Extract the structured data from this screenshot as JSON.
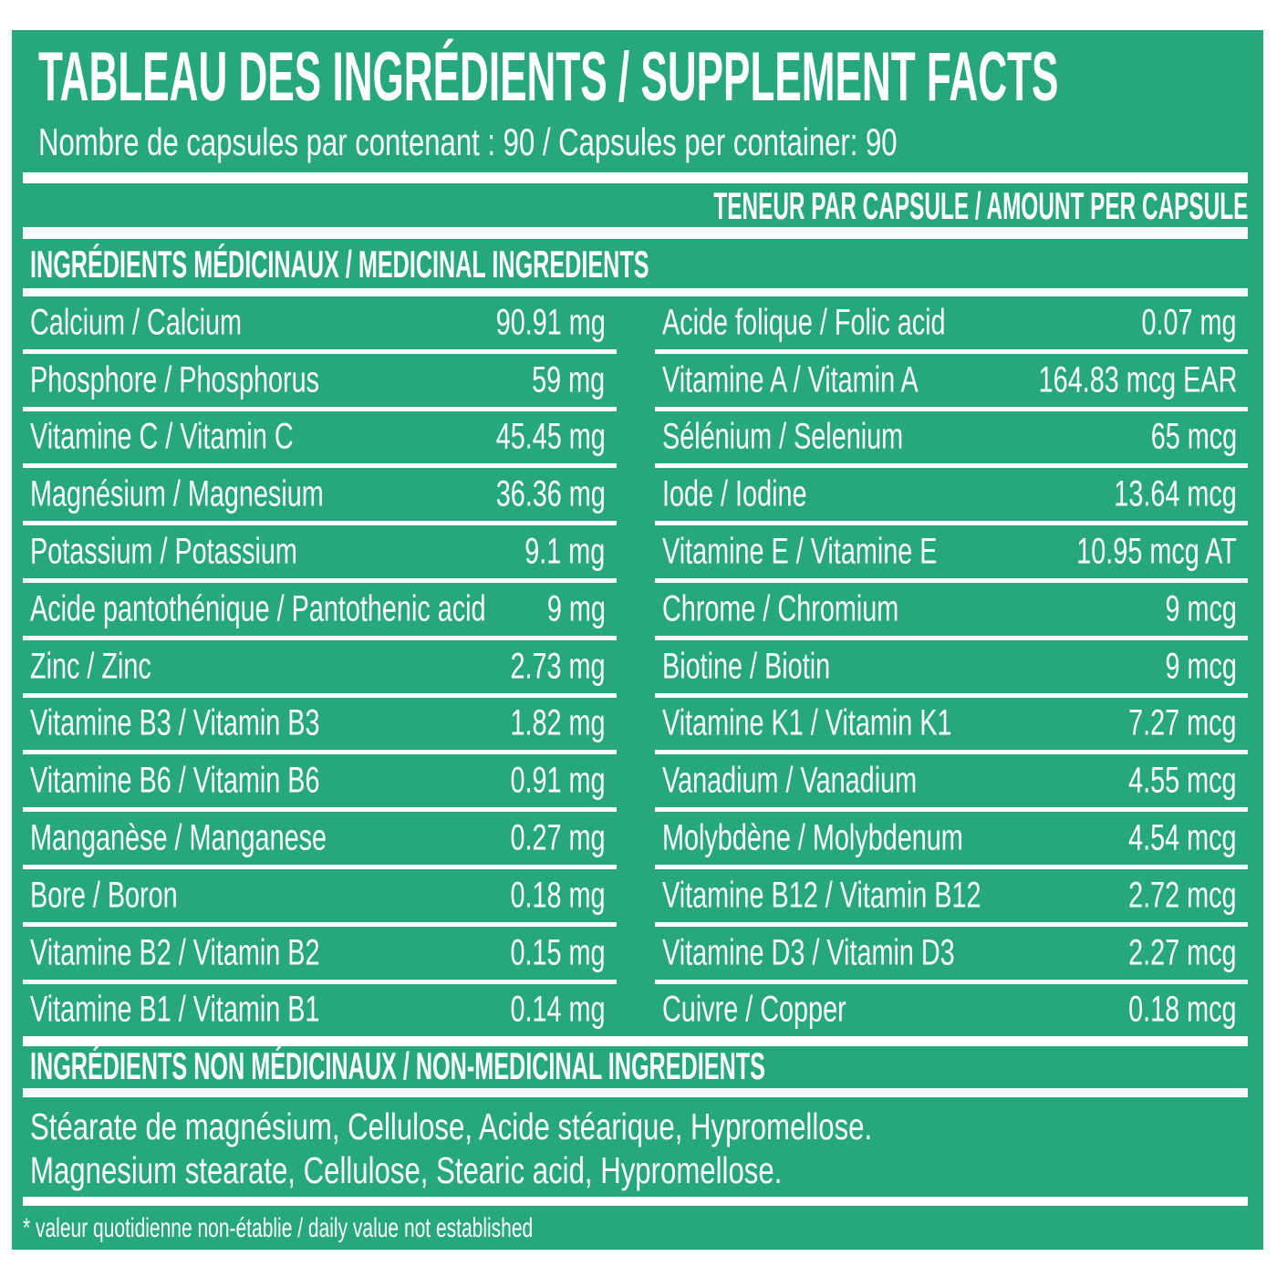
{
  "colors": {
    "panel_green": "#27A87C",
    "text_white": "#FFFFFF"
  },
  "header": {
    "title": "TABLEAU DES INGRÉDIENTS / SUPPLEMENT FACTS",
    "capsules_line": "Nombre de capsules par contenant : 90 / Capsules per container: 90",
    "amount_per_capsule": "TENEUR PAR CAPSULE / AMOUNT PER CAPSULE"
  },
  "medicinal": {
    "heading": "INGRÉDIENTS MÉDICINAUX / MEDICINAL INGREDIENTS",
    "left_column": [
      {
        "name": "Calcium / Calcium",
        "amount": "90.91 mg"
      },
      {
        "name": "Phosphore / Phosphorus",
        "amount": "59 mg"
      },
      {
        "name": "Vitamine C / Vitamin C",
        "amount": "45.45 mg"
      },
      {
        "name": "Magnésium / Magnesium",
        "amount": "36.36 mg"
      },
      {
        "name": "Potassium  /  Potassium",
        "amount": "9.1 mg"
      },
      {
        "name": "Acide pantothénique  / Pantothenic acid",
        "amount": "9 mg"
      },
      {
        "name": "Zinc / Zinc",
        "amount": "2.73 mg"
      },
      {
        "name": "Vitamine B3 / Vitamin B3",
        "amount": "1.82 mg"
      },
      {
        "name": "Vitamine B6 / Vitamin B6",
        "amount": "0.91 mg"
      },
      {
        "name": "Manganèse / Manganese",
        "amount": "0.27 mg"
      },
      {
        "name": "Bore  /  Boron",
        "amount": "0.18 mg"
      },
      {
        "name": "Vitamine B2 /  Vitamin B2",
        "amount": "0.15 mg"
      },
      {
        "name": "Vitamine B1 /  Vitamin B1",
        "amount": "0.14 mg"
      }
    ],
    "right_column": [
      {
        "name": "Acide folique / Folic acid",
        "amount": "0.07 mg"
      },
      {
        "name": "Vitamine A / Vitamin A",
        "amount": "164.83 mcg EAR"
      },
      {
        "name": "Sélénium / Selenium",
        "amount": "65 mcg"
      },
      {
        "name": "Iode / Iodine",
        "amount": "13.64 mcg"
      },
      {
        "name": "Vitamine E / Vitamine E",
        "amount": "10.95 mcg AT"
      },
      {
        "name": "Chrome  / Chromium",
        "amount": "9 mcg"
      },
      {
        "name": "Biotine / Biotin",
        "amount": "9 mcg"
      },
      {
        "name": "Vitamine K1  / Vitamin K1",
        "amount": "7.27 mcg"
      },
      {
        "name": "Vanadium  / Vanadium",
        "amount": "4.55 mcg"
      },
      {
        "name": "Molybdène / Molybdenum",
        "amount": "4.54 mcg"
      },
      {
        "name": "Vitamine B12 / Vitamin B12",
        "amount": "2.72 mcg"
      },
      {
        "name": "Vitamine D3 / Vitamin D3",
        "amount": "2.27 mcg"
      },
      {
        "name": "Cuivre / Copper",
        "amount": "0.18 mcg"
      }
    ]
  },
  "non_medicinal": {
    "heading": "INGRÉDIENTS NON MÉDICINAUX / NON-MEDICINAL INGREDIENTS",
    "line_fr": "Stéarate de magnésium, Cellulose, Acide stéarique, Hypromellose.",
    "line_en": "Magnesium stearate, Cellulose, Stearic acid, Hypromellose."
  },
  "footnote": "* valeur quotidienne non-établie / daily value not established"
}
